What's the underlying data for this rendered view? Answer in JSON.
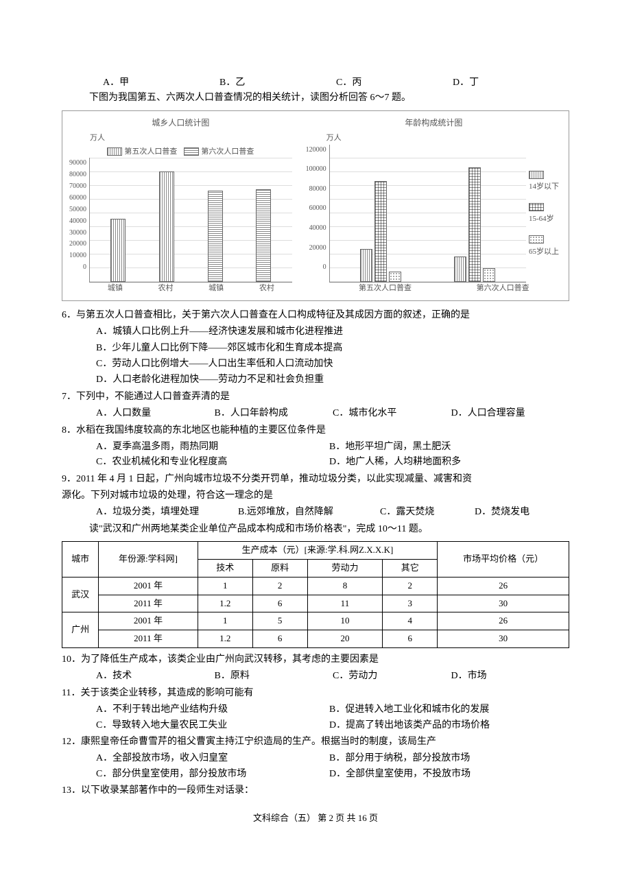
{
  "top_options": {
    "a": "A．甲",
    "b": "B．乙",
    "c": "C．丙",
    "d": "D．丁"
  },
  "intro_67": "下图为我国第五、六两次人口普查情况的相关统计，读图分析回答 6～7 题。",
  "chart1": {
    "title": "城乡人口统计图",
    "unit": "万人",
    "ymax": 90000,
    "ytick_step": 10000,
    "legend": [
      "第五次人口普查",
      "第六次人口普查"
    ],
    "legend_colors": [
      "fill-a",
      "fill-b"
    ],
    "groups": [
      {
        "label": "城镇",
        "fifth": 46000,
        "sixth": 0
      },
      {
        "label": "农村",
        "fifth": 80000,
        "sixth": 0
      },
      {
        "label": "城镇",
        "fifth": 0,
        "sixth": 66000
      },
      {
        "label": "农村",
        "fifth": 0,
        "sixth": 67000
      }
    ]
  },
  "chart2": {
    "title": "年龄构成统计图",
    "unit": "万人",
    "ymax": 120000,
    "ytick_step": 20000,
    "legend": [
      "14岁以下",
      "15-64岁",
      "65岁以上"
    ],
    "legend_colors": [
      "fill-a",
      "fill-grid",
      "fill-dots"
    ],
    "groups": [
      {
        "label": "第五次人口普查",
        "seg": [
          29000,
          88000,
          8800
        ]
      },
      {
        "label": "第六次人口普查",
        "seg": [
          22000,
          100000,
          12000
        ]
      }
    ]
  },
  "q6": {
    "stem": "6．与第五次人口普查相比，关于第六次人口普查在人口构成特征及其成因方面的叙述，正确的是",
    "a": "A．城镇人口比例上升——经济快速发展和城市化进程推进",
    "b": "B．少年儿童人口比例下降——郊区城市化和生育成本提高",
    "c": "C．劳动人口比例增大——人口出生率低和人口流动加快",
    "d": "D．人口老龄化进程加快——劳动力不足和社会负担重"
  },
  "q7": {
    "stem": "7．下列中，不能通过人口普查弄清的是",
    "a": "A．人口数量",
    "b": "B．人口年龄构成",
    "c": "C．城市化水平",
    "d": "D．人口合理容量"
  },
  "q8": {
    "stem": "8．水稻在我国纬度较高的东北地区也能种植的主要区位条件是",
    "a": "A．夏季高温多雨，雨热同期",
    "b": "B．地形平坦广阔，黑土肥沃",
    "c": "C．农业机械化和专业化程度高",
    "d": "D．地广人稀，人均耕地面积多"
  },
  "q9": {
    "stem1": "9．2011 年 4 月 1 日起，广州向城市垃圾不分类开罚单，推动垃圾分类，以此实现减量、减害和资",
    "stem2": "源化。下列对城市垃圾的处理，符合这一理念的是",
    "a": "A．垃圾分类，填埋处理",
    "b": "B.远郊堆放，自然降解",
    "c": "C．露天焚烧",
    "d": "D．焚烧发电"
  },
  "intro_1011": "读\"武汉和广州两地某类企业单位产品成本构成和市场价格表\"，完成 10～11 题。",
  "table": {
    "headers": {
      "city": "城市",
      "year": "年份源:学科网]",
      "cost": "生产成本（元）[来源:学.科.网Z.X.X.K]",
      "tech": "技术",
      "material": "原料",
      "labor": "劳动力",
      "other": "其它",
      "price": "市场平均价格（元）"
    },
    "rows": [
      {
        "city": "武汉",
        "year": "2001 年",
        "tech": "1",
        "material": "2",
        "labor": "8",
        "other": "2",
        "price": "26"
      },
      {
        "city": "武汉",
        "year": "2011 年",
        "tech": "1.2",
        "material": "6",
        "labor": "11",
        "other": "3",
        "price": "30"
      },
      {
        "city": "广州",
        "year": "2001 年",
        "tech": "1",
        "material": "5",
        "labor": "10",
        "other": "4",
        "price": "26"
      },
      {
        "city": "广州",
        "year": "2011 年",
        "tech": "1.2",
        "material": "6",
        "labor": "20",
        "other": "6",
        "price": "30"
      }
    ]
  },
  "q10": {
    "stem": "10．为了降低生产成本，该类企业由广州向武汉转移，其考虑的主要因素是",
    "a": "A．技术",
    "b": "B．原料",
    "c": "C．劳动力",
    "d": "D．市场"
  },
  "q11": {
    "stem": "11．关于该类企业转移，其造成的影响可能有",
    "a": "A．不利于转出地产业结构升级",
    "b": "B．促进转入地工业化和城市化的发展",
    "c": "C．导致转入地大量农民工失业",
    "d": "D．提高了转出地该类产品的市场价格"
  },
  "q12": {
    "stem": "12．康熙皇帝任命曹雪芹的祖父曹寅主持江宁织造局的生产。根据当时的制度，该局生产",
    "a": "A．全部投放市场，收入归皇室",
    "b": "B．部分用于纳税，部分投放市场",
    "c": "C．部分供皇室使用，部分投放市场",
    "d": "D．全部供皇室使用，不投放市场"
  },
  "q13": {
    "stem": "13．以下收录某部著作中的一段师生对话录："
  },
  "footer": "文科综合（五）  第 2 页   共 16 页"
}
